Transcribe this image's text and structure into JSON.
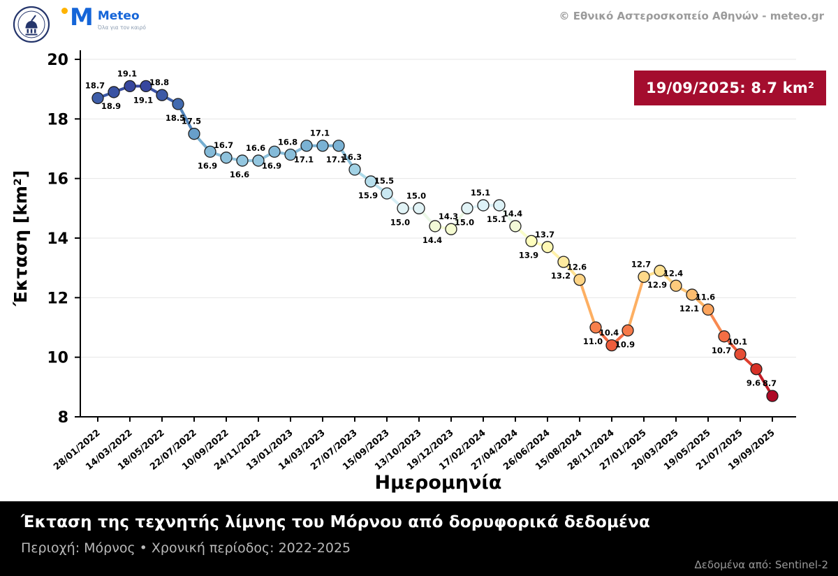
{
  "header": {
    "meteo_logo": {
      "letter": "M",
      "name": "Meteo",
      "tagline": "Όλα για τον καιρό"
    },
    "copyright": "© Εθνικό Αστεροσκοπείο Αθηνών - meteo.gr"
  },
  "badge": {
    "text": "19/09/2025: 8.7 km²"
  },
  "colors": {
    "badge_bg": "#a40d2e",
    "footer_bg": "#000000",
    "meteo_blue": "#1565d8",
    "meteo_yellow": "#ffb300",
    "axis": "#000000",
    "grid": "#e6e6e6"
  },
  "chart_data": {
    "type": "line",
    "title": "",
    "xlabel": "Ημερομηνία",
    "ylabel": "Έκταση [km²]",
    "ylim": [
      8,
      20
    ],
    "yticks": [
      8,
      10,
      12,
      14,
      16,
      18,
      20
    ],
    "grid": true,
    "legend": false,
    "marker_label_style": "alternating above/below, one decimal",
    "color_scale": {
      "colormap": "RdYlBu",
      "vmin": 8.5,
      "vmax": 19.4
    },
    "x_tick_every": 2,
    "x_tick_labels": [
      "28/01/2022",
      "14/03/2022",
      "18/05/2022",
      "22/07/2022",
      "10/09/2022",
      "24/11/2022",
      "13/01/2023",
      "14/03/2023",
      "27/07/2023",
      "15/09/2023",
      "13/10/2023",
      "19/12/2023",
      "17/02/2024",
      "27/04/2024",
      "26/06/2024",
      "15/08/2024",
      "28/11/2024",
      "27/01/2025",
      "20/03/2025",
      "19/05/2025",
      "21/07/2025",
      "19/09/2025"
    ],
    "values": [
      18.7,
      18.9,
      19.1,
      19.1,
      18.8,
      18.5,
      17.5,
      16.9,
      16.7,
      16.6,
      16.6,
      16.9,
      16.8,
      17.1,
      17.1,
      17.1,
      16.3,
      15.9,
      15.5,
      15.0,
      15.0,
      14.4,
      14.3,
      15.0,
      15.1,
      15.1,
      14.4,
      13.9,
      13.7,
      13.2,
      12.6,
      11.0,
      10.4,
      10.9,
      12.7,
      12.9,
      12.4,
      12.1,
      11.6,
      10.7,
      10.1,
      9.6,
      8.7
    ]
  },
  "footer": {
    "title": "Έκταση της τεχνητής λίμνης του Μόρνου από δορυφορικά δεδομένα",
    "subtitle": "Περιοχή: Μόρνος • Χρονική περίοδος: 2022-2025",
    "source": "Δεδομένα από: Sentinel-2"
  }
}
